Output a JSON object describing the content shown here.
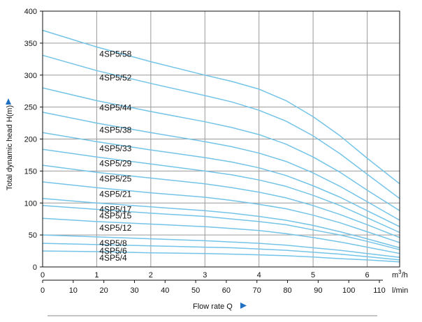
{
  "chart_data": {
    "type": "line",
    "title": "",
    "ylabel": "Total dynamic head H(m)",
    "xlabel": "Flow rate  Q",
    "x_unit_primary": "m³/h",
    "x_unit_secondary": "l/min",
    "x_primary_ticks": [
      "0",
      "1",
      "2",
      "3",
      "4",
      "5",
      "6"
    ],
    "x_secondary_ticks": [
      "0",
      "10",
      "20",
      "30",
      "40",
      "50",
      "60",
      "70",
      "80",
      "90",
      "100",
      "110"
    ],
    "y_ticks": [
      "0",
      "50",
      "100",
      "150",
      "200",
      "250",
      "300",
      "350",
      "400"
    ],
    "xlim": [
      0,
      6.6
    ],
    "ylim": [
      0,
      400
    ],
    "grid": true,
    "colors": {
      "curve": "#74c4e8",
      "grid": "#9a9a9a",
      "axis": "#111111",
      "arrow": "#1f6fc2"
    },
    "series": [
      {
        "name": "4SP5/58",
        "x": [
          0,
          1,
          2,
          3,
          3.5,
          4,
          4.5,
          5,
          5.5,
          6,
          6.6
        ],
        "y": [
          370,
          344,
          321,
          300,
          290,
          278,
          260,
          235,
          205,
          170,
          130
        ]
      },
      {
        "name": "4SP5/52",
        "x": [
          0,
          1,
          2,
          3,
          3.5,
          4,
          4.5,
          5,
          5.5,
          6,
          6.6
        ],
        "y": [
          331,
          307,
          287,
          268,
          258,
          245,
          228,
          205,
          177,
          145,
          107
        ]
      },
      {
        "name": "4SP5/44",
        "x": [
          0,
          1,
          2,
          3,
          3.5,
          4,
          4.5,
          5,
          5.5,
          6,
          6.6
        ],
        "y": [
          280,
          260,
          243,
          227,
          218,
          207,
          192,
          172,
          148,
          120,
          88
        ]
      },
      {
        "name": "4SP5/38",
        "x": [
          0,
          1,
          2,
          3,
          3.5,
          4,
          4.5,
          5,
          5.5,
          6,
          6.6
        ],
        "y": [
          242,
          225,
          210,
          196,
          188,
          178,
          165,
          147,
          126,
          102,
          73
        ]
      },
      {
        "name": "4SP5/33",
        "x": [
          0,
          1,
          2,
          3,
          3.5,
          4,
          4.5,
          5,
          5.5,
          6,
          6.6
        ],
        "y": [
          210,
          196,
          183,
          171,
          164,
          155,
          143,
          127,
          109,
          88,
          63
        ]
      },
      {
        "name": "4SP5/29",
        "x": [
          0,
          1,
          2,
          3,
          3.5,
          4,
          4.5,
          5,
          5.5,
          6,
          6.6
        ],
        "y": [
          184,
          172,
          161,
          150,
          144,
          136,
          126,
          112,
          96,
          77,
          54
        ]
      },
      {
        "name": "4SP5/25",
        "x": [
          0,
          1,
          2,
          3,
          3.5,
          4,
          4.5,
          5,
          5.5,
          6,
          6.6
        ],
        "y": [
          159,
          148,
          139,
          130,
          124,
          117,
          108,
          96,
          82,
          66,
          46
        ]
      },
      {
        "name": "4SP5/21",
        "x": [
          0,
          1,
          2,
          3,
          3.5,
          4,
          4.5,
          5,
          5.5,
          6,
          6.6
        ],
        "y": [
          133,
          124,
          116,
          109,
          104,
          98,
          91,
          81,
          69,
          55,
          38
        ]
      },
      {
        "name": "4SP5/17",
        "x": [
          0,
          1,
          2,
          3,
          3.5,
          4,
          4.5,
          5,
          5.5,
          6,
          6.6
        ],
        "y": [
          107,
          100,
          94,
          88,
          84,
          79,
          73,
          65,
          55,
          44,
          30
        ]
      },
      {
        "name": "4SP5/15",
        "x": [
          0,
          1,
          2,
          3,
          3.5,
          4,
          4.5,
          5,
          5.5,
          6,
          6.6
        ],
        "y": [
          96,
          90,
          84,
          79,
          75,
          71,
          66,
          58,
          50,
          40,
          27
        ]
      },
      {
        "name": "4SP5/12",
        "x": [
          0,
          1,
          2,
          3,
          3.5,
          4,
          4.5,
          5,
          5.5,
          6,
          6.6
        ],
        "y": [
          76,
          71,
          67,
          63,
          60,
          57,
          52,
          46,
          39,
          31,
          21
        ]
      },
      {
        "name": "4SP5/8",
        "x": [
          0,
          1,
          2,
          3,
          3.5,
          4,
          4.5,
          5,
          5.5,
          6,
          6.6
        ],
        "y": [
          50,
          47,
          44,
          41,
          39,
          37,
          34,
          30,
          26,
          21,
          15
        ]
      },
      {
        "name": "4SP5/6",
        "x": [
          0,
          1,
          2,
          3,
          3.5,
          4,
          4.5,
          5,
          5.5,
          6,
          6.6
        ],
        "y": [
          37,
          35,
          33,
          31,
          30,
          28,
          26,
          23,
          20,
          16,
          11
        ]
      },
      {
        "name": "4SP5/4",
        "x": [
          0,
          1,
          2,
          3,
          3.5,
          4,
          4.5,
          5,
          5.5,
          6,
          6.6
        ],
        "y": [
          25,
          24,
          22,
          21,
          20,
          19,
          17.5,
          15.5,
          13,
          11,
          8
        ]
      }
    ]
  }
}
